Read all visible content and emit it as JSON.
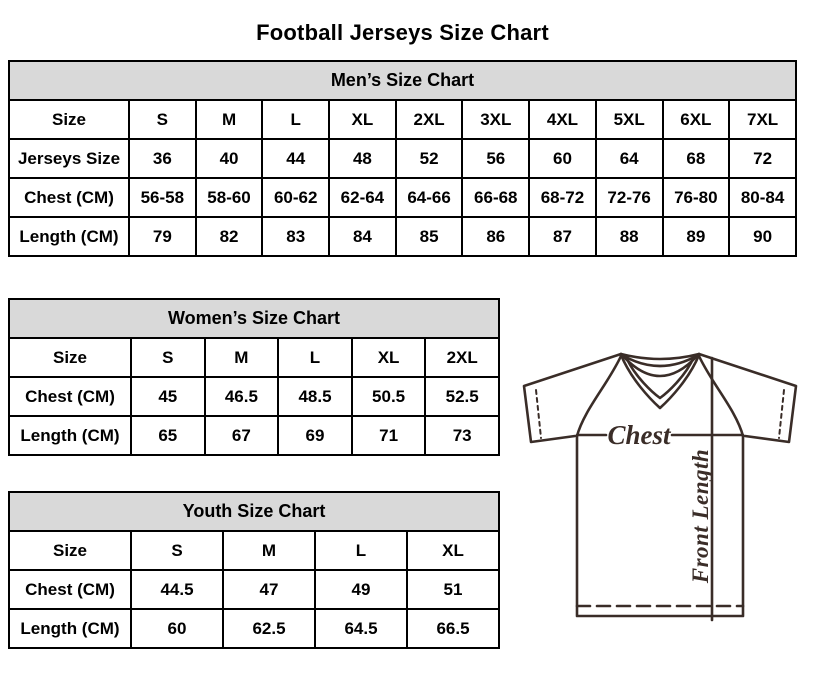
{
  "page": {
    "title": "Football Jerseys Size Chart"
  },
  "tables": [
    {
      "name": "mens",
      "title": "Men’s Size Chart",
      "rows": [
        [
          "Size",
          "S",
          "M",
          "L",
          "XL",
          "2XL",
          "3XL",
          "4XL",
          "5XL",
          "6XL",
          "7XL"
        ],
        [
          "Jerseys Size",
          "36",
          "40",
          "44",
          "48",
          "52",
          "56",
          "60",
          "64",
          "68",
          "72"
        ],
        [
          "Chest (CM)",
          "56-58",
          "58-60",
          "60-62",
          "62-64",
          "64-66",
          "66-68",
          "68-72",
          "72-76",
          "76-80",
          "80-84"
        ],
        [
          "Length (CM)",
          "79",
          "82",
          "83",
          "84",
          "85",
          "86",
          "87",
          "88",
          "89",
          "90"
        ]
      ]
    },
    {
      "name": "womens",
      "title": "Women’s Size Chart",
      "rows": [
        [
          "Size",
          "S",
          "M",
          "L",
          "XL",
          "2XL"
        ],
        [
          "Chest (CM)",
          "45",
          "46.5",
          "48.5",
          "50.5",
          "52.5"
        ],
        [
          "Length (CM)",
          "65",
          "67",
          "69",
          "71",
          "73"
        ]
      ]
    },
    {
      "name": "youth",
      "title": "Youth Size Chart",
      "rows": [
        [
          "Size",
          "S",
          "M",
          "L",
          "XL"
        ],
        [
          "Chest (CM)",
          "44.5",
          "47",
          "49",
          "51"
        ],
        [
          "Length (CM)",
          "60",
          "62.5",
          "64.5",
          "66.5"
        ]
      ]
    }
  ],
  "diagram": {
    "chest_label": "Chest",
    "front_length_label": "Front Length"
  },
  "colors": {
    "header_bg": "#d9d9d9",
    "table_border": "#000000",
    "diagram_line": "#3a2d28"
  }
}
